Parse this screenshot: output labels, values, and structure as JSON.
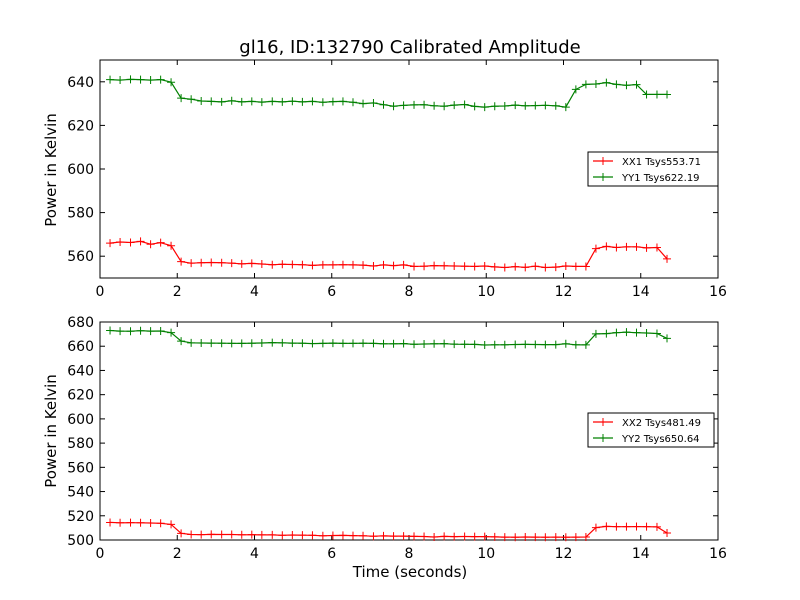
{
  "chart_data": [
    {
      "type": "line",
      "title": "gl16, ID:132790 Calibrated Amplitude",
      "xlabel": "",
      "ylabel": "Power in Kelvin",
      "xlim": [
        0,
        16
      ],
      "ylim": [
        550,
        650
      ],
      "x_ticks": [
        0,
        2,
        4,
        6,
        8,
        10,
        12,
        14,
        16
      ],
      "y_ticks": [
        560,
        580,
        600,
        620,
        640
      ],
      "grid": false,
      "legend_position": "right",
      "x": [
        0.26,
        0.52,
        0.79,
        1.05,
        1.31,
        1.57,
        1.84,
        2.1,
        2.36,
        2.62,
        2.88,
        3.15,
        3.41,
        3.67,
        3.93,
        4.19,
        4.46,
        4.72,
        4.98,
        5.24,
        5.5,
        5.77,
        6.03,
        6.29,
        6.55,
        6.81,
        7.08,
        7.34,
        7.6,
        7.86,
        8.13,
        8.39,
        8.65,
        8.91,
        9.17,
        9.44,
        9.7,
        9.96,
        10.22,
        10.48,
        10.75,
        11.01,
        11.27,
        11.53,
        11.8,
        12.06,
        12.32,
        12.58,
        12.84,
        13.11,
        13.37,
        13.63,
        13.89,
        14.15,
        14.42,
        14.68
      ],
      "series": [
        {
          "name": "XX1 Tsys553.71",
          "color": "#ff0000",
          "values": [
            566,
            566.5,
            566.3,
            566.8,
            565.5,
            566.2,
            564.8,
            557.5,
            556.8,
            557,
            557.1,
            557,
            556.8,
            556.5,
            556.7,
            556.4,
            556.1,
            556.3,
            556.2,
            556.1,
            555.8,
            556,
            556,
            556.1,
            556,
            555.9,
            555.5,
            556,
            555.7,
            556,
            555.3,
            555.4,
            555.7,
            555.6,
            555.5,
            555.4,
            555.3,
            555.5,
            555.1,
            554.8,
            555.2,
            554.9,
            555.4,
            554.8,
            555,
            555.5,
            555.3,
            555.3,
            563.5,
            564.5,
            564,
            564.3,
            564.3,
            563.8,
            564,
            558.8
          ]
        },
        {
          "name": "YY1 Tsys622.19",
          "color": "#008000",
          "values": [
            641,
            640.8,
            641.1,
            641,
            640.8,
            641,
            639.8,
            632.5,
            632,
            631.2,
            631,
            630.8,
            631.3,
            630.8,
            631,
            630.7,
            631,
            630.8,
            631.1,
            630.8,
            631,
            630.6,
            630.9,
            631,
            630.6,
            630,
            630.3,
            629.5,
            628.8,
            629.2,
            629.4,
            629.5,
            629,
            628.8,
            629.3,
            629.6,
            628.7,
            628.4,
            628.8,
            628.9,
            629.3,
            629,
            629.1,
            629.2,
            629,
            628.4,
            636.5,
            638.8,
            639,
            639.6,
            638.8,
            638.4,
            638.7,
            634.2,
            634.2,
            634.2
          ]
        }
      ]
    },
    {
      "type": "line",
      "title": "",
      "xlabel": "Time (seconds)",
      "ylabel": "Power in Kelvin",
      "xlim": [
        0,
        16
      ],
      "ylim": [
        500,
        680
      ],
      "x_ticks": [
        0,
        2,
        4,
        6,
        8,
        10,
        12,
        14,
        16
      ],
      "y_ticks": [
        500,
        520,
        540,
        560,
        580,
        600,
        620,
        640,
        660,
        680
      ],
      "grid": false,
      "legend_position": "right",
      "x": [
        0.26,
        0.52,
        0.79,
        1.05,
        1.31,
        1.57,
        1.84,
        2.1,
        2.36,
        2.62,
        2.88,
        3.15,
        3.41,
        3.67,
        3.93,
        4.19,
        4.46,
        4.72,
        4.98,
        5.24,
        5.5,
        5.77,
        6.03,
        6.29,
        6.55,
        6.81,
        7.08,
        7.34,
        7.6,
        7.86,
        8.13,
        8.39,
        8.65,
        8.91,
        9.17,
        9.44,
        9.7,
        9.96,
        10.22,
        10.48,
        10.75,
        11.01,
        11.27,
        11.53,
        11.8,
        12.06,
        12.32,
        12.58,
        12.84,
        13.11,
        13.37,
        13.63,
        13.89,
        14.15,
        14.42,
        14.68
      ],
      "series": [
        {
          "name": "XX2 Tsys481.49",
          "color": "#ff0000",
          "values": [
            514.5,
            514.2,
            514.3,
            514.2,
            514,
            513.8,
            512.9,
            505.5,
            504.5,
            504.4,
            504.6,
            504.5,
            504.5,
            504.3,
            504.4,
            504.2,
            504.2,
            503.9,
            504.1,
            504,
            503.9,
            503.5,
            503.7,
            503.8,
            503.6,
            503.5,
            503.1,
            503.4,
            503.2,
            503.2,
            503,
            502.9,
            502.5,
            503,
            502.8,
            502.9,
            502.8,
            502.8,
            502.6,
            502.4,
            502.3,
            502.5,
            502.4,
            502.3,
            502.4,
            502.3,
            502.4,
            502.5,
            510.2,
            511.2,
            511,
            511,
            511.1,
            511,
            510.8,
            505.8
          ]
        },
        {
          "name": "YY2 Tsys650.64",
          "color": "#008000",
          "values": [
            673,
            672.5,
            672.4,
            672.8,
            672.5,
            672.6,
            671.2,
            664.2,
            662.8,
            662.7,
            662.6,
            662.5,
            662.4,
            662.3,
            662.5,
            662.7,
            663,
            662.8,
            662.6,
            662.5,
            662.2,
            662.3,
            662.6,
            662.3,
            662.4,
            662.5,
            662.3,
            662,
            662,
            662.2,
            661.6,
            661.8,
            662,
            662.1,
            661.7,
            661.6,
            661.5,
            661,
            661.2,
            661.2,
            661.4,
            661.5,
            661.4,
            661.3,
            661.3,
            662,
            661.2,
            661.1,
            670.2,
            670.4,
            671.2,
            671.6,
            671.2,
            670.9,
            670.5,
            666.5
          ]
        }
      ]
    }
  ]
}
